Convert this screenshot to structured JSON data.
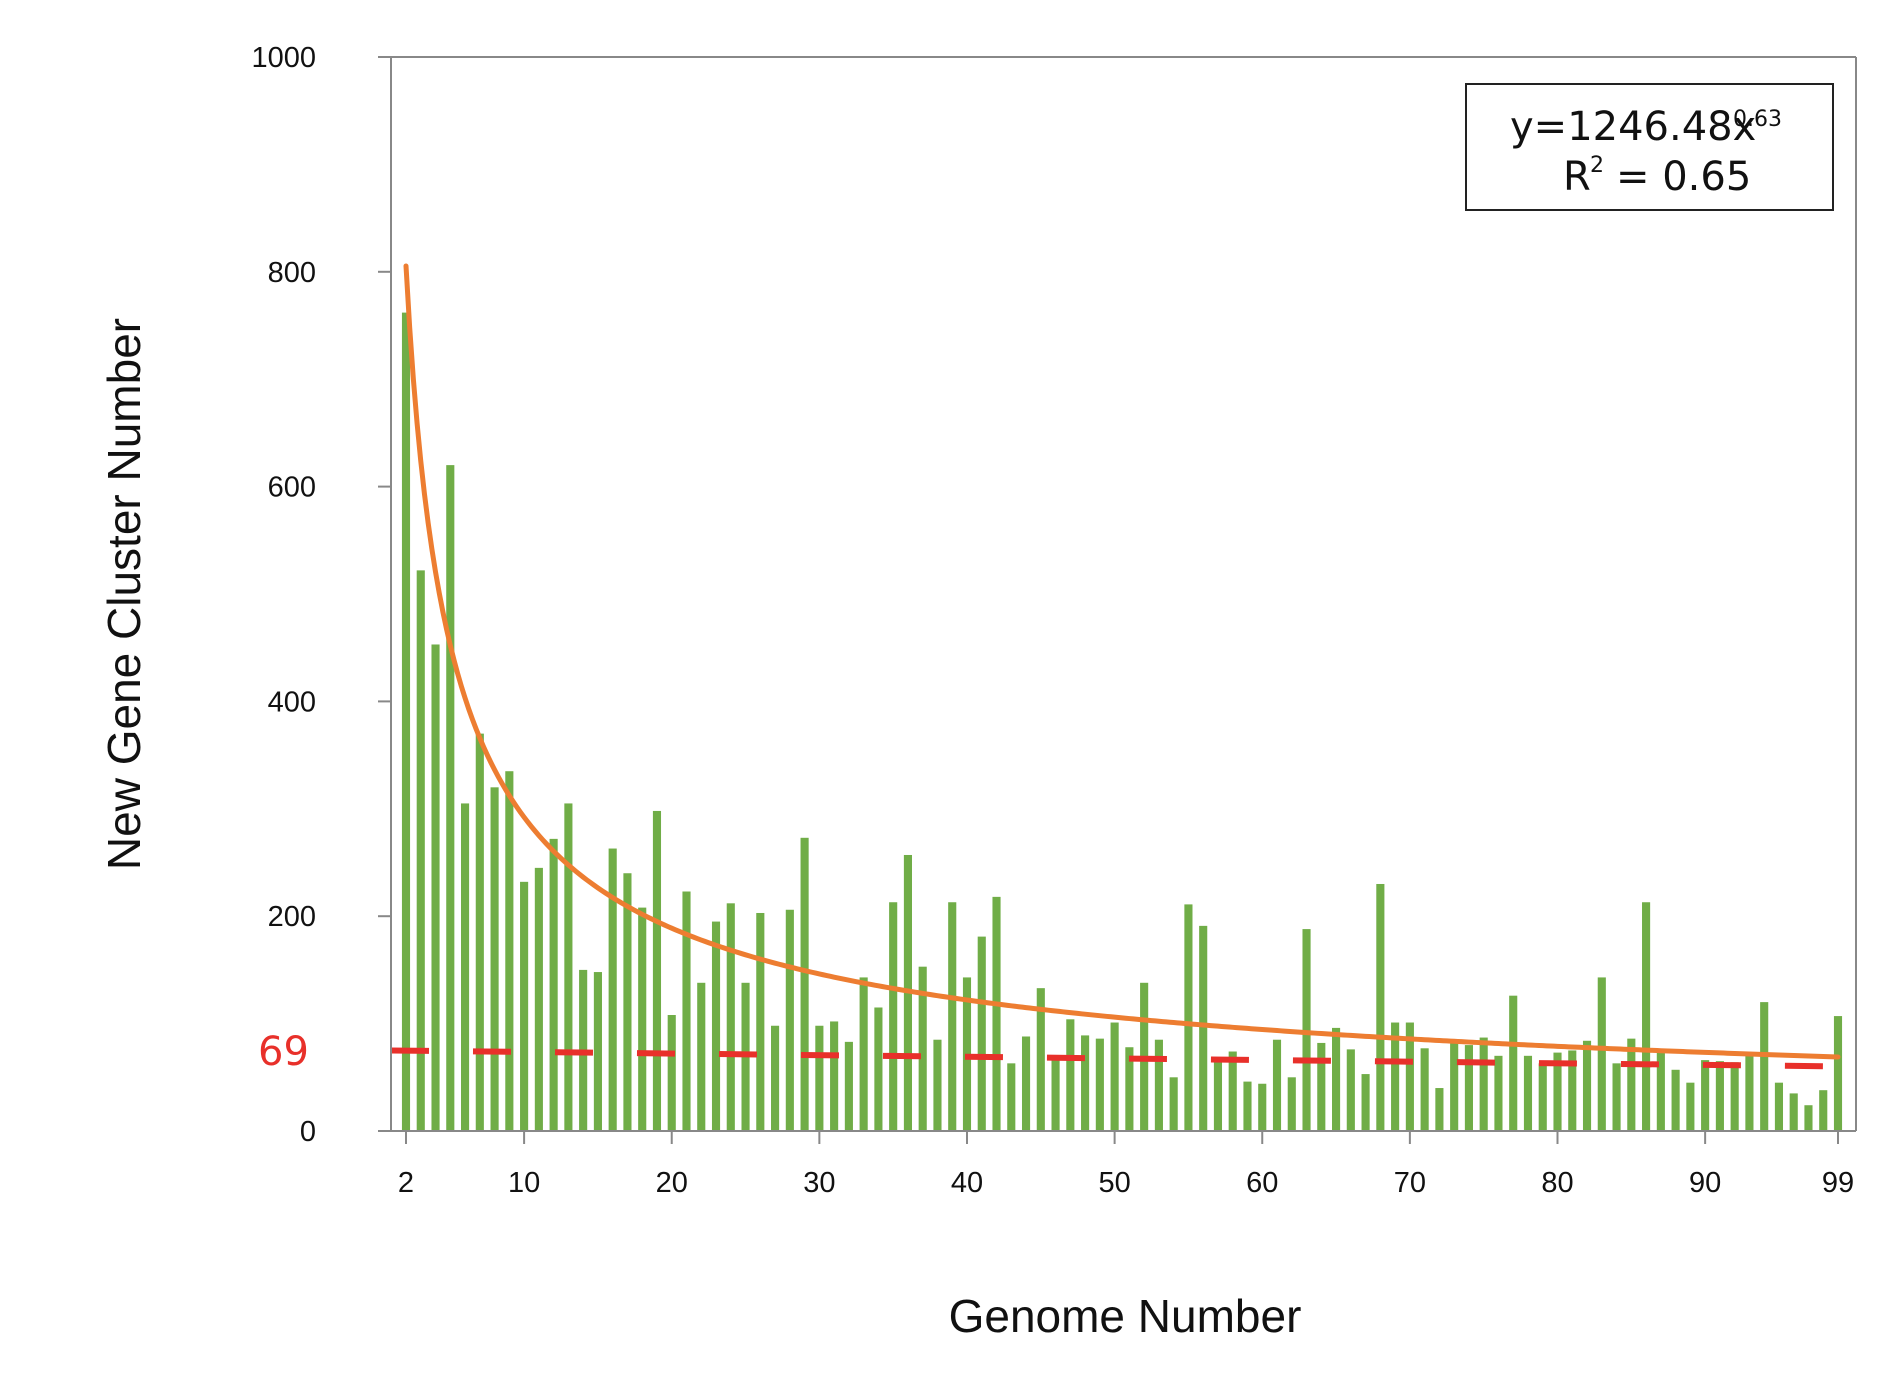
{
  "chart_data": {
    "type": "bar",
    "xlabel": "Genome Number",
    "ylabel": "New Gene Cluster Number",
    "ylim": [
      0,
      1000
    ],
    "xlim": [
      2,
      99
    ],
    "y_ticks": [
      "0",
      "200",
      "400",
      "600",
      "800",
      "1000"
    ],
    "x_ticks": [
      "2",
      "10",
      "20",
      "30",
      "40",
      "50",
      "60",
      "70",
      "80",
      "90",
      "99"
    ],
    "x": [
      2,
      3,
      4,
      5,
      6,
      7,
      8,
      9,
      10,
      11,
      12,
      13,
      14,
      15,
      16,
      17,
      18,
      19,
      20,
      21,
      22,
      23,
      24,
      25,
      26,
      27,
      28,
      29,
      30,
      31,
      32,
      33,
      34,
      35,
      36,
      37,
      38,
      39,
      40,
      41,
      42,
      43,
      44,
      45,
      46,
      47,
      48,
      49,
      50,
      51,
      52,
      53,
      54,
      55,
      56,
      57,
      58,
      59,
      60,
      61,
      62,
      63,
      64,
      65,
      66,
      67,
      68,
      69,
      70,
      71,
      72,
      73,
      74,
      75,
      76,
      77,
      78,
      79,
      80,
      81,
      82,
      83,
      84,
      85,
      86,
      87,
      88,
      89,
      90,
      91,
      92,
      93,
      94,
      95,
      96,
      97,
      98,
      99
    ],
    "values": [
      762,
      522,
      453,
      620,
      305,
      370,
      320,
      335,
      232,
      245,
      272,
      305,
      150,
      148,
      263,
      240,
      208,
      298,
      108,
      223,
      138,
      195,
      212,
      138,
      203,
      98,
      206,
      273,
      98,
      102,
      83,
      143,
      115,
      213,
      257,
      153,
      85,
      213,
      143,
      181,
      218,
      63,
      88,
      133,
      68,
      104,
      89,
      86,
      101,
      78,
      138,
      85,
      50,
      211,
      191,
      68,
      74,
      46,
      44,
      85,
      50,
      188,
      82,
      96,
      76,
      53,
      230,
      101,
      101,
      77,
      40,
      82,
      80,
      87,
      70,
      126,
      70,
      63,
      73,
      75,
      84,
      143,
      63,
      86,
      213,
      73,
      57,
      45,
      66,
      65,
      64,
      70,
      120,
      45,
      35,
      24,
      38,
      107
    ],
    "bar_color": "#70ad47",
    "fit": {
      "type": "power",
      "coefficient": 1246.48,
      "exponent": -0.63,
      "color": "#ed7d31",
      "equation_main": "y=1246.48x",
      "equation_exp": "0.63",
      "r2_prefix": "R",
      "r2_sup": "2",
      "r2_value": "= 0.65",
      "legend_position": "top-right"
    },
    "reference_line": {
      "label": "69",
      "y_start": 75,
      "y_end": 60,
      "color": "#e8302a",
      "style": "dashed"
    },
    "grid": false
  }
}
